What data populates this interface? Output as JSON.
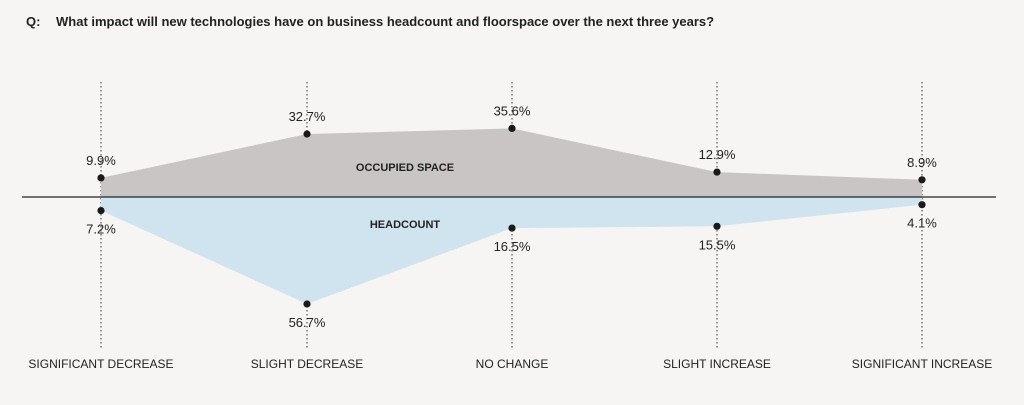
{
  "question": {
    "prefix": "Q:",
    "text": "What impact will new technologies have on business headcount and floorspace over the next three years?"
  },
  "chart_data": {
    "type": "area",
    "categories": [
      "SIGNIFICANT DECREASE",
      "SLIGHT DECREASE",
      "NO CHANGE",
      "SLIGHT INCREASE",
      "SIGNIFICANT INCREASE"
    ],
    "series": [
      {
        "name": "OCCUPIED SPACE",
        "values": [
          9.9,
          32.7,
          35.6,
          12.9,
          8.9
        ],
        "labels": [
          "9.9%",
          "32.7%",
          "35.6%",
          "12.9%",
          "8.9%"
        ],
        "direction": "above-baseline",
        "color": "#c9c5c4"
      },
      {
        "name": "HEADCOUNT",
        "values": [
          7.2,
          56.7,
          16.5,
          15.5,
          4.1
        ],
        "labels": [
          "7.2%",
          "56.7%",
          "16.5%",
          "15.5%",
          "4.1%"
        ],
        "direction": "below-baseline",
        "color": "#cfe4ef"
      }
    ],
    "colors": {
      "background": "#f7f5f3",
      "axis": "#222222",
      "marker": "#1a1a1a"
    },
    "grid": "dotted vertical guides at each category",
    "legend": "inline series labels"
  }
}
